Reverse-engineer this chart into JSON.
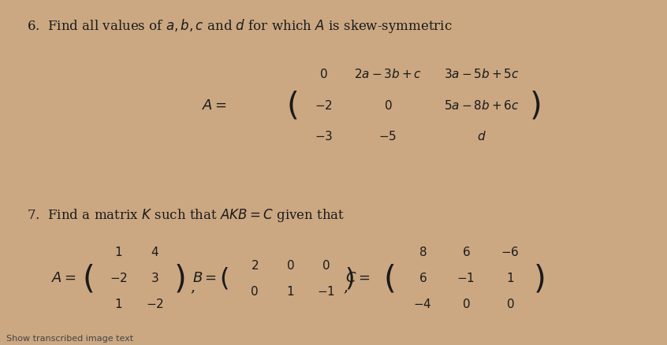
{
  "background_color": "#cba882",
  "text_color": "#1a1a1a",
  "footer_text": "Show transcribed image text",
  "problem6_header": "6.  Find all values of $a, b, c$ and $d$ for which $A$ is skew-symmetric",
  "problem6_matrix_label": "$A=$",
  "problem6_matrix": [
    [
      "$0$",
      "$2a-3b+c$",
      "$3a-5b+5c$"
    ],
    [
      "$-2$",
      "$0$",
      "$5a-8b+6c$"
    ],
    [
      "$-3$",
      "$-5$",
      "$d$"
    ]
  ],
  "problem7_header": "7.  Find a matrix $K$ such that $AKB=C$ given that",
  "problem7_A_label": "$A=$",
  "problem7_A": [
    [
      "$1$",
      "$4$"
    ],
    [
      "$-2$",
      "$3$"
    ],
    [
      "$1$",
      "$-2$"
    ]
  ],
  "problem7_B_label": "$B=$",
  "problem7_B": [
    [
      "$2$",
      "$0$",
      "$0$"
    ],
    [
      "$0$",
      "$1$",
      "$-1$"
    ]
  ],
  "problem7_C_label": "$C=$",
  "problem7_C": [
    [
      "$8$",
      "$6$",
      "$-6$"
    ],
    [
      "$6$",
      "$-1$",
      "$1$"
    ],
    [
      "$-4$",
      "$0$",
      "$0$"
    ]
  ]
}
